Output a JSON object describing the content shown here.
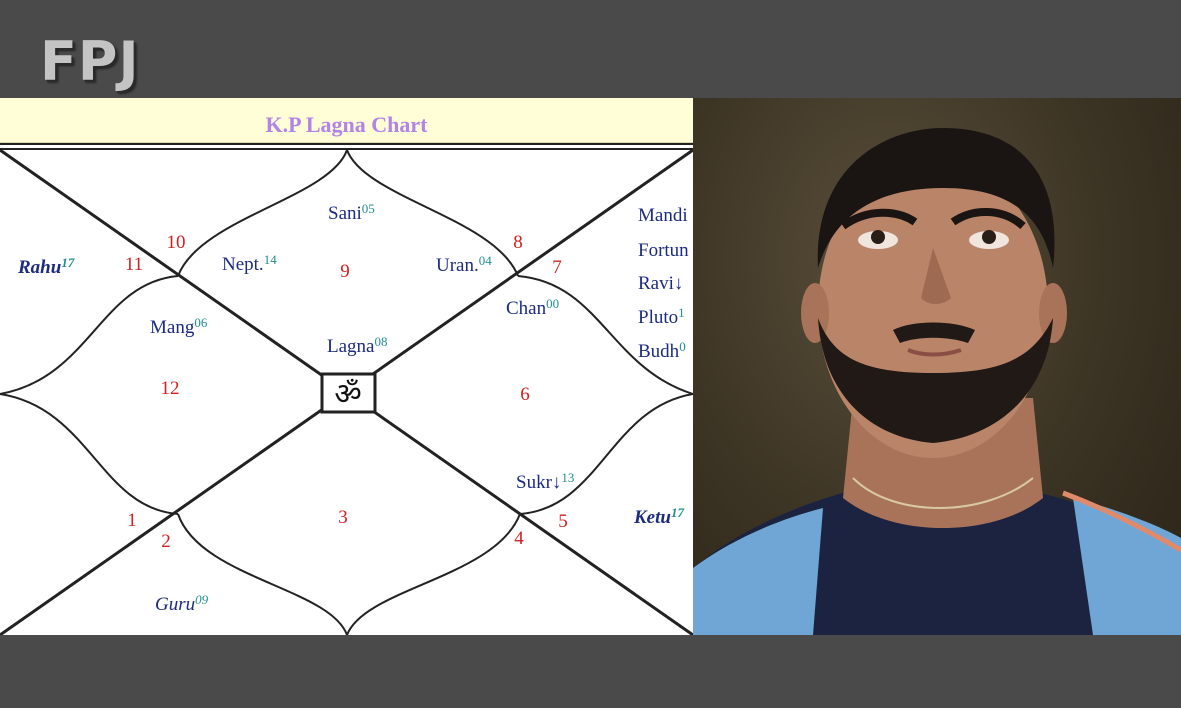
{
  "logo": "FPJ",
  "chart": {
    "title": "K.P Lagna Chart",
    "center_symbol": "ॐ",
    "houses": [
      {
        "num": "1"
      },
      {
        "num": "2"
      },
      {
        "num": "3"
      },
      {
        "num": "4"
      },
      {
        "num": "5"
      },
      {
        "num": "6"
      },
      {
        "num": "7"
      },
      {
        "num": "8"
      },
      {
        "num": "9"
      },
      {
        "num": "10"
      },
      {
        "num": "11"
      },
      {
        "num": "12"
      }
    ],
    "planets": [
      {
        "name": "Rahu",
        "deg": "17"
      },
      {
        "name": "Mang",
        "deg": "06"
      },
      {
        "name": "Nept.",
        "deg": "14"
      },
      {
        "name": "Sani",
        "deg": "05"
      },
      {
        "name": "Uran.",
        "deg": "04"
      },
      {
        "name": "Lagna",
        "deg": "08"
      },
      {
        "name": "Chan",
        "deg": "00"
      },
      {
        "name": "Mandi",
        "deg": ""
      },
      {
        "name": "Fortun",
        "deg": ""
      },
      {
        "name": "Ravi↓",
        "deg": ""
      },
      {
        "name": "Pluto",
        "deg": "1"
      },
      {
        "name": "Budh",
        "deg": "0"
      },
      {
        "name": "Sukr↓",
        "deg": "13"
      },
      {
        "name": "Ketu",
        "deg": "17"
      },
      {
        "name": "Guru",
        "deg": "09"
      }
    ]
  },
  "colors": {
    "background": "#4a4a4a",
    "header": "#fffed6",
    "title": "#b383e8",
    "house_number": "#d12020",
    "planet": "#1c2a80",
    "degree": "#1f8f8f"
  }
}
